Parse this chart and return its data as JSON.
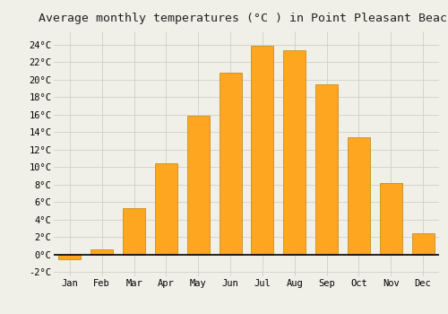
{
  "months": [
    "Jan",
    "Feb",
    "Mar",
    "Apr",
    "May",
    "Jun",
    "Jul",
    "Aug",
    "Sep",
    "Oct",
    "Nov",
    "Dec"
  ],
  "temperatures": [
    -0.5,
    0.6,
    5.3,
    10.4,
    15.9,
    20.8,
    23.9,
    23.3,
    19.4,
    13.4,
    8.2,
    2.4
  ],
  "bar_color": "#FFA620",
  "bar_edge_color": "#B8860B",
  "title": "Average monthly temperatures (°C ) in Point Pleasant Beach",
  "ylim": [
    -2.5,
    25.5
  ],
  "yticks": [
    -2,
    0,
    2,
    4,
    6,
    8,
    10,
    12,
    14,
    16,
    18,
    20,
    22,
    24
  ],
  "background_color": "#f0f0e8",
  "grid_color": "#d0d0c8",
  "title_fontsize": 9.5,
  "tick_fontsize": 7.5,
  "font_family": "monospace"
}
